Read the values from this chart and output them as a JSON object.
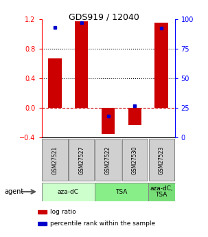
{
  "title": "GDS919 / 12040",
  "samples": [
    "GSM27521",
    "GSM27527",
    "GSM27522",
    "GSM27530",
    "GSM27523"
  ],
  "log_ratio": [
    0.67,
    1.17,
    -0.35,
    -0.23,
    1.15
  ],
  "percentile_rank": [
    0.93,
    0.97,
    0.18,
    0.27,
    0.92
  ],
  "bar_color": "#cc0000",
  "pct_color": "#0000cc",
  "ylim_left": [
    -0.4,
    1.2
  ],
  "yticks_left": [
    -0.4,
    0,
    0.4,
    0.8,
    1.2
  ],
  "yticks_right": [
    0,
    25,
    50,
    75,
    100
  ],
  "background_color": "#ffffff",
  "agent_label": "agent",
  "legend_log_ratio": "log ratio",
  "legend_pct_rank": "percentile rank within the sample",
  "group_starts": [
    0,
    2,
    4
  ],
  "group_ends": [
    2,
    4,
    5
  ],
  "group_labels": [
    "aza-dC",
    "TSA",
    "aza-dC,\nTSA"
  ],
  "group_colors": [
    "#ccffcc",
    "#88ee88",
    "#77dd77"
  ]
}
